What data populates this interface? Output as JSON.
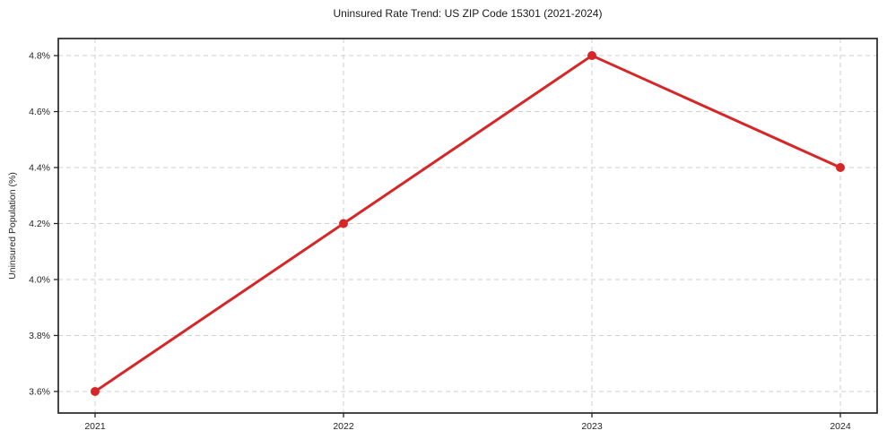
{
  "chart_data": {
    "type": "line",
    "title": "Uninsured Rate Trend: US ZIP Code 15301 (2021-2024)",
    "xlabel": "",
    "ylabel": "Uninsured Population (%)",
    "categories": [
      "2021",
      "2022",
      "2023",
      "2024"
    ],
    "series": [
      {
        "name": "uninsured-rate",
        "values": [
          3.6,
          4.2,
          4.8,
          4.4
        ]
      }
    ],
    "y_ticks": [
      3.6,
      3.8,
      4.0,
      4.2,
      4.4,
      4.6,
      4.8
    ],
    "y_tick_labels": [
      "3.6%",
      "3.8%",
      "4.0%",
      "4.2%",
      "4.4%",
      "4.6%",
      "4.8%"
    ],
    "ylim": [
      3.523,
      4.861
    ],
    "grid": true,
    "grid_style": "dashed",
    "legend": "none",
    "colors": {
      "line": "#d62728",
      "marker": "#d62728",
      "grid": "#cfcfcf",
      "frame": "#262626",
      "tick_text": "#262626",
      "title_text": "#1a1a1a",
      "background": "#ffffff"
    }
  }
}
